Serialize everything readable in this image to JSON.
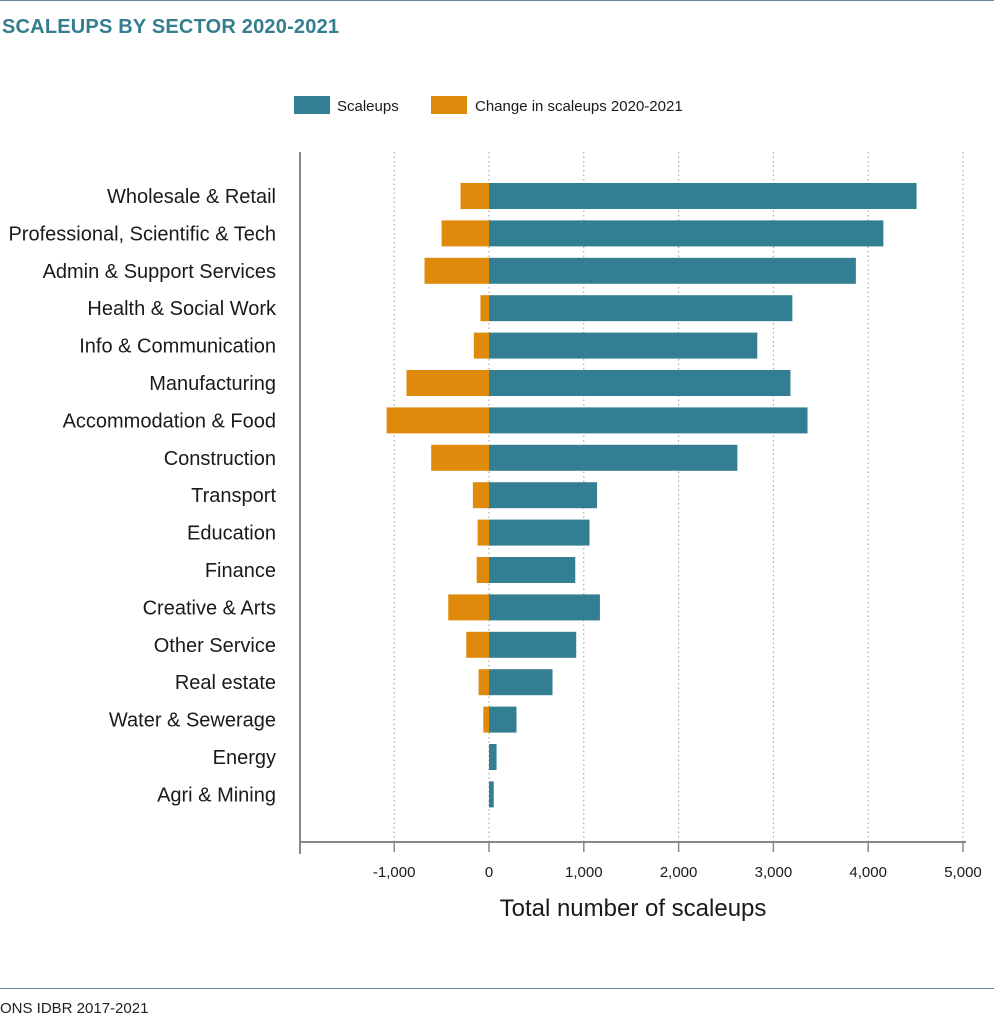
{
  "header": {
    "title": "SCALEUPS BY SECTOR 2020-2021"
  },
  "footer": {
    "source": "ONS IDBR 2017-2021"
  },
  "colors": {
    "scaleups": "#347e93",
    "change": "#e08a0c",
    "rule": "#5f8a95",
    "title": "#347e8f",
    "grid": "#9a9a9a",
    "axis": "#888888"
  },
  "chart_data": {
    "type": "bar",
    "orientation": "horizontal",
    "stacking": "diverging",
    "title": "SCALEUPS BY SECTOR 2020-2021",
    "xlabel": "Total number of scaleups",
    "ylabel": "",
    "xlim": [
      -2000,
      5000
    ],
    "xticks": [
      -1000,
      0,
      1000,
      2000,
      3000,
      4000,
      5000
    ],
    "xtick_labels": [
      "-1,000",
      "0",
      "1,000",
      "2,000",
      "3,000",
      "4,000",
      "5,000"
    ],
    "grid": "vertical dotted",
    "legend_position": "top",
    "categories": [
      "Wholesale & Retail",
      "Professional, Scientific & Tech",
      "Admin & Support Services",
      "Health & Social Work",
      "Info & Communication",
      "Manufacturing",
      "Accommodation & Food",
      "Construction",
      "Transport",
      "Education",
      "Finance",
      "Creative & Arts",
      "Other Service",
      "Real estate",
      "Water & Sewerage",
      "Energy",
      "Agri & Mining"
    ],
    "series": [
      {
        "name": "Scaleups",
        "color": "#347e93",
        "values": [
          4510,
          4160,
          3870,
          3200,
          2830,
          3180,
          3360,
          2620,
          1140,
          1060,
          910,
          1170,
          920,
          670,
          290,
          80,
          50
        ]
      },
      {
        "name": "Change in scaleups 2020-2021",
        "color": "#e08a0c",
        "values": [
          -300,
          -500,
          -680,
          -90,
          -160,
          -870,
          -1080,
          -610,
          -170,
          -120,
          -130,
          -430,
          -240,
          -110,
          -60,
          0,
          0
        ]
      }
    ]
  }
}
